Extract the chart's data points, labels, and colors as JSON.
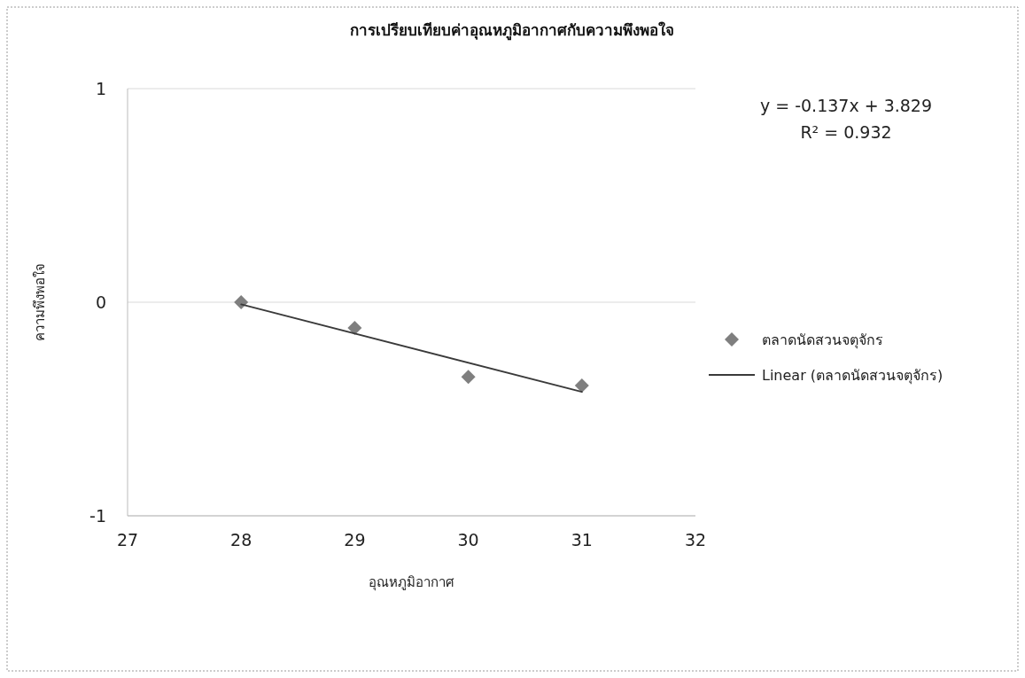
{
  "chart_data": {
    "type": "scatter",
    "title": "การเปรียบเทียบค่าอุณหภูมิอากาศกับความพึงพอใจ",
    "xlabel": "อุณหภูมิอากาศ",
    "ylabel": "ความพึงพอใจ",
    "annotations": [
      "y = -0.137x + 3.829",
      "R² = 0.932"
    ],
    "xlim": [
      27,
      32
    ],
    "xticks": [
      27,
      28,
      29,
      30,
      31,
      32
    ],
    "ylim": [
      -1,
      1
    ],
    "yticks": [
      -1,
      0,
      1
    ],
    "grid": "y",
    "legend": "right",
    "series": [
      {
        "name": "ตลาดนัดสวนจตุจักร",
        "marker": "diamond",
        "color": "#7f7f7f",
        "x": [
          28,
          29,
          30,
          31
        ],
        "values": [
          0,
          -0.12,
          -0.35,
          -0.39
        ]
      },
      {
        "name": "Linear (ตลาดนัดสวนจตุจักร)",
        "type": "line",
        "marker": "none",
        "line_style": "solid",
        "color": "#3a3a3a",
        "x": [
          28,
          31
        ],
        "values": [
          -0.01,
          -0.42
        ]
      }
    ]
  }
}
